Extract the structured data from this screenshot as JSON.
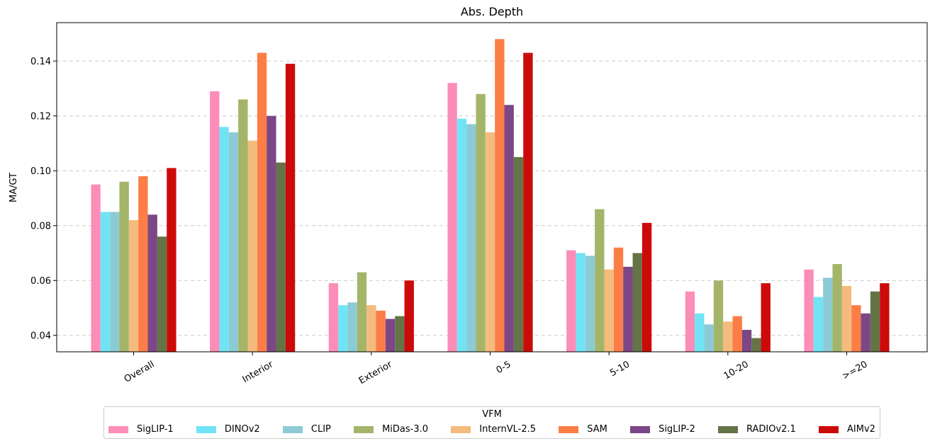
{
  "chart_data": {
    "type": "bar",
    "title": "Abs. Depth",
    "xlabel": "",
    "ylabel": "MA/GT",
    "ylim": [
      0.034,
      0.154
    ],
    "yticks": [
      0.04,
      0.06,
      0.08,
      0.1,
      0.12,
      0.14
    ],
    "ytick_labels": [
      "0.04",
      "0.06",
      "0.08",
      "0.10",
      "0.12",
      "0.14"
    ],
    "grid": "horizontal dashed",
    "categories": [
      "Overall",
      "Interior",
      "Exterior",
      "0-5",
      "5-10",
      "10-20",
      ">=20"
    ],
    "series": [
      {
        "name": "SigLIP-1",
        "color": "#fc8db8",
        "values": [
          0.095,
          0.129,
          0.059,
          0.132,
          0.071,
          0.056,
          0.064
        ]
      },
      {
        "name": "DINOv2",
        "color": "#70e4f5",
        "values": [
          0.085,
          0.116,
          0.051,
          0.119,
          0.07,
          0.048,
          0.054
        ]
      },
      {
        "name": "CLIP",
        "color": "#8ccbd6",
        "values": [
          0.085,
          0.114,
          0.052,
          0.117,
          0.069,
          0.044,
          0.061
        ]
      },
      {
        "name": "MiDas-3.0",
        "color": "#a4b56a",
        "values": [
          0.096,
          0.126,
          0.063,
          0.128,
          0.086,
          0.06,
          0.066
        ]
      },
      {
        "name": "InternVL-2.5",
        "color": "#f3bb7d",
        "values": [
          0.082,
          0.111,
          0.051,
          0.114,
          0.064,
          0.045,
          0.058
        ]
      },
      {
        "name": "SAM",
        "color": "#fd7d47",
        "values": [
          0.098,
          0.143,
          0.049,
          0.148,
          0.072,
          0.047,
          0.051
        ]
      },
      {
        "name": "SigLIP-2",
        "color": "#7c4786",
        "values": [
          0.084,
          0.12,
          0.046,
          0.124,
          0.065,
          0.042,
          0.048
        ]
      },
      {
        "name": "RADIOv2.1",
        "color": "#647447",
        "values": [
          0.076,
          0.103,
          0.047,
          0.105,
          0.07,
          0.039,
          0.056
        ]
      },
      {
        "name": "AIMv2",
        "color": "#cd0a0a",
        "values": [
          0.101,
          0.139,
          0.06,
          0.143,
          0.081,
          0.059,
          0.059
        ]
      }
    ],
    "legend": {
      "title": "VFM",
      "placement": "bottom-center"
    }
  }
}
